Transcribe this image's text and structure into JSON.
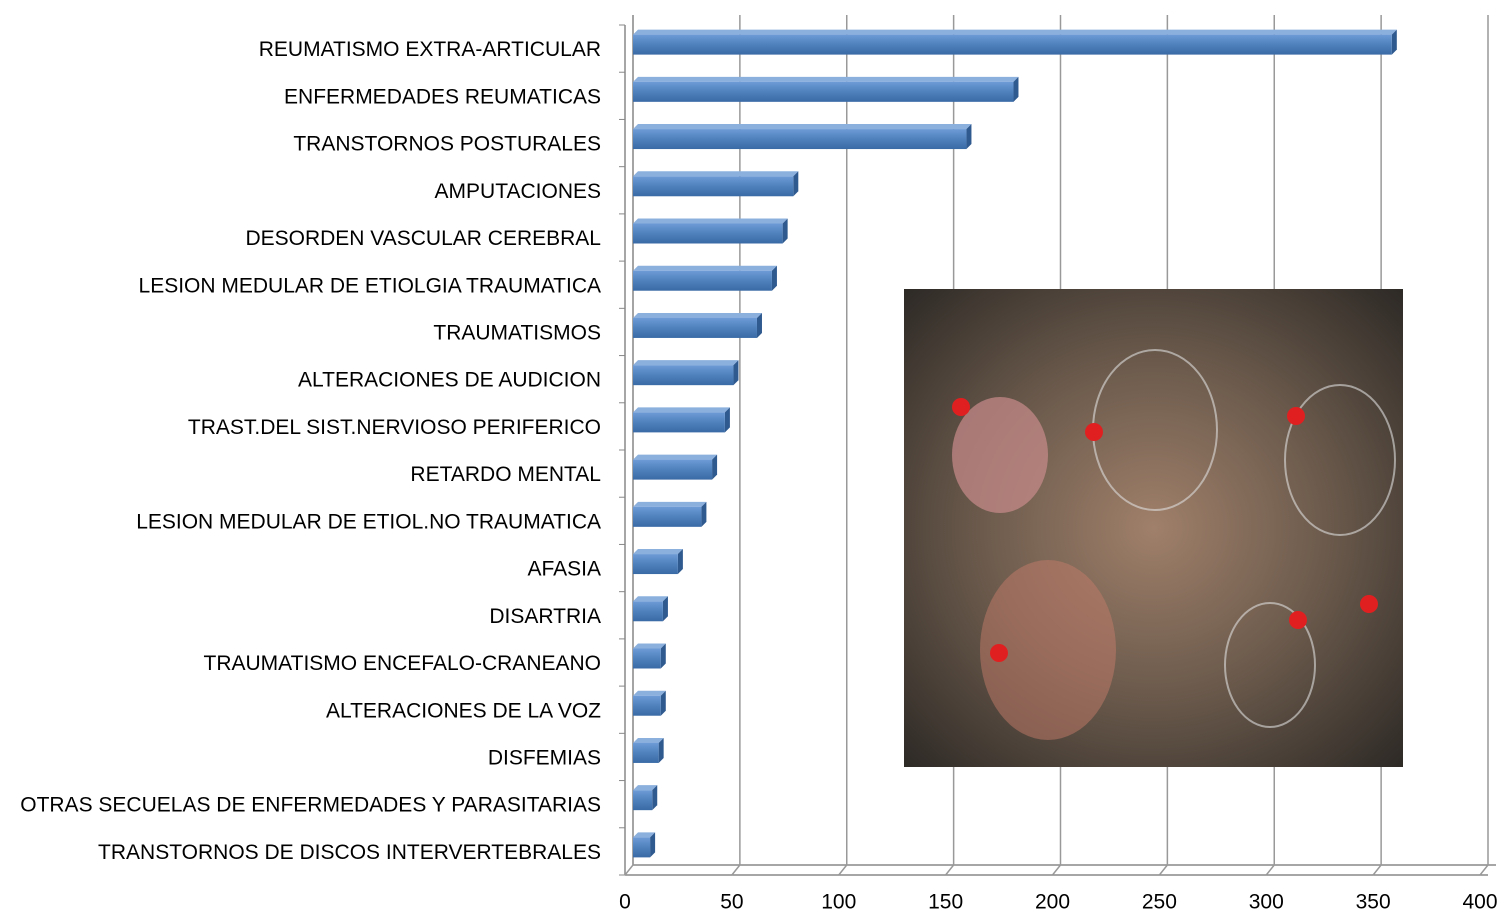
{
  "chart_data": {
    "type": "bar",
    "orientation": "horizontal",
    "categories": [
      "REUMATISMO EXTRA-ARTICULAR",
      "ENFERMEDADES REUMATICAS",
      "TRANSTORNOS POSTURALES",
      "AMPUTACIONES",
      "DESORDEN VASCULAR CEREBRAL",
      "LESION MEDULAR DE ETIOLGIA TRAUMATICA",
      "TRAUMATISMOS",
      "ALTERACIONES DE AUDICION",
      "TRAST.DEL SIST.NERVIOSO PERIFERICO",
      "RETARDO MENTAL",
      "LESION MEDULAR DE ETIOL.NO TRAUMATICA",
      "AFASIA",
      "DISARTRIA",
      "TRAUMATISMO ENCEFALO-CRANEANO",
      "ALTERACIONES DE LA VOZ",
      "DISFEMIAS",
      "OTRAS SECUELAS DE ENFERMEDADES Y PARASITARIAS",
      "TRANSTORNOS DE DISCOS INTERVERTEBRALES"
    ],
    "values": [
      355,
      178,
      156,
      75,
      70,
      65,
      58,
      47,
      43,
      37,
      32,
      21,
      14,
      13,
      13,
      12,
      9,
      8
    ],
    "color": "#4f81bd",
    "xlim": [
      0,
      400
    ],
    "xticks": [
      0,
      50,
      100,
      150,
      200,
      250,
      300,
      350,
      400
    ],
    "grid": true
  }
}
